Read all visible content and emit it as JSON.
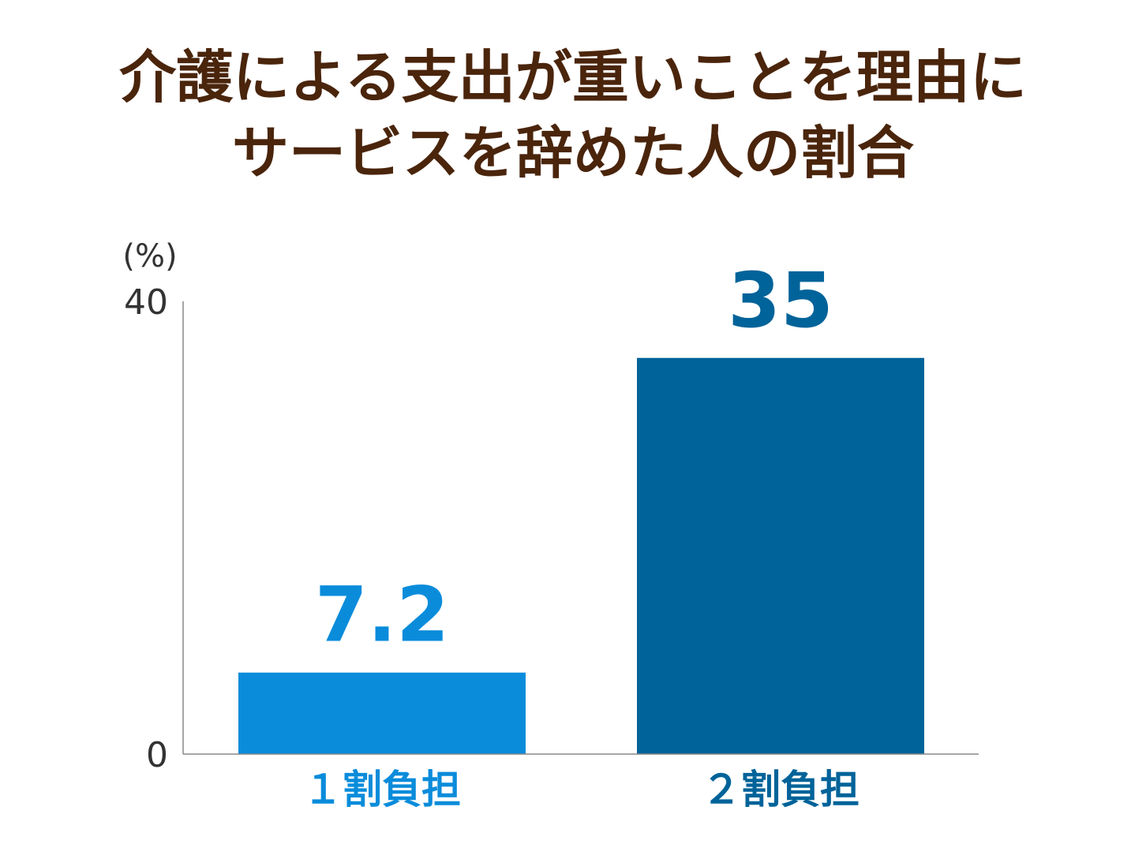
{
  "title": {
    "line1": "介護による支出が重いことを理由に",
    "line2": "サービスを辞めた人の割合"
  },
  "chart_data": {
    "type": "bar",
    "title": "介護による支出が重いことを理由にサービスを辞めた人の割合",
    "unit_label": "(%)",
    "categories": [
      "１割負担",
      "２割負担"
    ],
    "values": [
      7.2,
      35
    ],
    "value_labels": [
      "7.2",
      "35"
    ],
    "ylim": [
      0,
      40
    ],
    "yticks": [
      "0",
      "40"
    ],
    "grid": false,
    "colors": {
      "bar_1": "#0a8cdb",
      "bar_2": "#006399",
      "title_text": "#4a250c",
      "axis": "#888888",
      "tick_text": "#333333"
    }
  }
}
